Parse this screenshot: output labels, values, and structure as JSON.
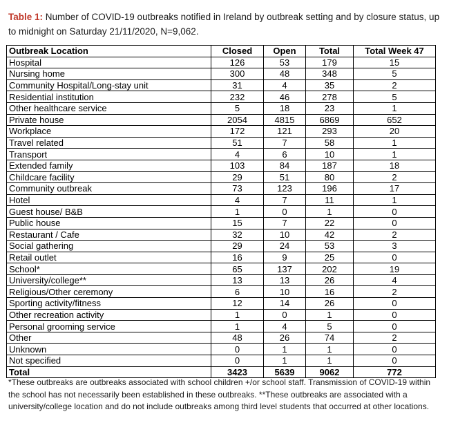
{
  "caption": {
    "label": "Table 1:",
    "text": " Number of COVID-19 outbreaks notified in Ireland by outbreak setting and by closure status, up to midnight on Saturday 21/11/2020, N=9,062."
  },
  "table": {
    "headers": [
      "Outbreak Location",
      "Closed",
      "Open",
      "Total",
      "Total Week 47"
    ],
    "rows": [
      [
        "Hospital",
        "126",
        "53",
        "179",
        "15"
      ],
      [
        "Nursing home",
        "300",
        "48",
        "348",
        "5"
      ],
      [
        "Community Hospital/Long-stay unit",
        "31",
        "4",
        "35",
        "2"
      ],
      [
        "Residential institution",
        "232",
        "46",
        "278",
        "5"
      ],
      [
        "Other healthcare service",
        "5",
        "18",
        "23",
        "1"
      ],
      [
        "Private house",
        "2054",
        "4815",
        "6869",
        "652"
      ],
      [
        "Workplace",
        "172",
        "121",
        "293",
        "20"
      ],
      [
        "Travel related",
        "51",
        "7",
        "58",
        "1"
      ],
      [
        "Transport",
        "4",
        "6",
        "10",
        "1"
      ],
      [
        "Extended family",
        "103",
        "84",
        "187",
        "18"
      ],
      [
        "Childcare facility",
        "29",
        "51",
        "80",
        "2"
      ],
      [
        "Community outbreak",
        "73",
        "123",
        "196",
        "17"
      ],
      [
        "Hotel",
        "4",
        "7",
        "11",
        "1"
      ],
      [
        "Guest house/ B&B",
        "1",
        "0",
        "1",
        "0"
      ],
      [
        "Public house",
        "15",
        "7",
        "22",
        "0"
      ],
      [
        "Restaurant / Cafe",
        "32",
        "10",
        "42",
        "2"
      ],
      [
        "Social gathering",
        "29",
        "24",
        "53",
        "3"
      ],
      [
        "Retail outlet",
        "16",
        "9",
        "25",
        "0"
      ],
      [
        "School*",
        "65",
        "137",
        "202",
        "19"
      ],
      [
        "University/college**",
        "13",
        "13",
        "26",
        "4"
      ],
      [
        "Religious/Other ceremony",
        "6",
        "10",
        "16",
        "2"
      ],
      [
        "Sporting activity/fitness",
        "12",
        "14",
        "26",
        "0"
      ],
      [
        "Other recreation activity",
        "1",
        "0",
        "1",
        "0"
      ],
      [
        "Personal grooming service",
        "1",
        "4",
        "5",
        "0"
      ],
      [
        "Other",
        "48",
        "26",
        "74",
        "2"
      ],
      [
        "Unknown",
        "0",
        "1",
        "1",
        "0"
      ],
      [
        "Not specified",
        "0",
        "1",
        "1",
        "0"
      ]
    ],
    "total_row": [
      "Total",
      "3423",
      "5639",
      "9062",
      "772"
    ]
  },
  "footnote": "*These outbreaks are outbreaks associated with school children +/or school staff. Transmission of COVID-19 within the school has not necessarily been established in these outbreaks. **These outbreaks are associated with a university/college location and do not include outbreaks among third level students that occurred at other locations."
}
